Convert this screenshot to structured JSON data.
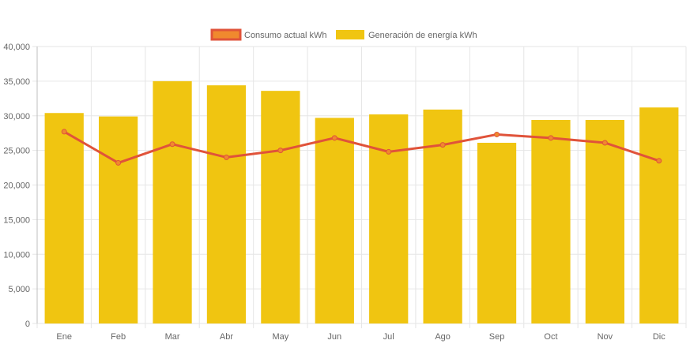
{
  "chart_data": {
    "type": "bar",
    "title": "",
    "xlabel": "",
    "ylabel": "",
    "categories": [
      "Ene",
      "Feb",
      "Mar",
      "Abr",
      "May",
      "Jun",
      "Jul",
      "Ago",
      "Sep",
      "Oct",
      "Nov",
      "Dic"
    ],
    "ylim": [
      0,
      40000
    ],
    "ytick_step": 5000,
    "grid": true,
    "legend_position": "top",
    "series": [
      {
        "name": "Consumo actual kWh",
        "type": "line",
        "color": "#e0533a",
        "legend_fill": "#f0892e",
        "values": [
          27700,
          23200,
          25900,
          24000,
          25000,
          26800,
          24800,
          25800,
          27300,
          26800,
          26100,
          23500
        ]
      },
      {
        "name": "Generación de energía kWh",
        "type": "bar",
        "color": "#f0c511",
        "values": [
          30400,
          29900,
          35000,
          34400,
          33600,
          29700,
          30200,
          30900,
          26100,
          29400,
          29400,
          31200
        ]
      }
    ]
  }
}
